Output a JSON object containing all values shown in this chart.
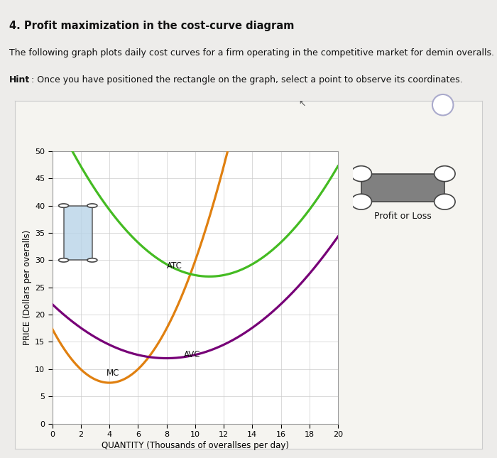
{
  "title_main": "4. Profit maximization in the cost-curve diagram",
  "text1": "The following graph plots daily cost curves for a firm operating in the competitive market for demin overalls.",
  "hint_bold": "Hint",
  "hint_rest": ": Once you have positioned the rectangle on the graph, select a point to observe its coordinates.",
  "xlabel": "QUANTITY (Thousands of overallses per day)",
  "ylabel": "PRICE (Dollars per overalls)",
  "xlim": [
    0,
    20
  ],
  "ylim": [
    0,
    50
  ],
  "xticks": [
    0,
    2,
    4,
    6,
    8,
    10,
    12,
    14,
    16,
    18,
    20
  ],
  "yticks": [
    0,
    5,
    10,
    15,
    20,
    25,
    30,
    35,
    40,
    45,
    50
  ],
  "mc_color": "#E08010",
  "atc_color": "#44BB22",
  "avc_color": "#770077",
  "rect_fill": "#B8D4E8",
  "rect_edge": "#444444",
  "circle_fill": "#FFFFFF",
  "legend_rect_fill": "#808080",
  "legend_label": "Profit or Loss",
  "bg_color": "#EDECEA",
  "plot_bg": "#FFFFFF",
  "box_bg": "#F5F4F0",
  "question_color": "#5588BB"
}
